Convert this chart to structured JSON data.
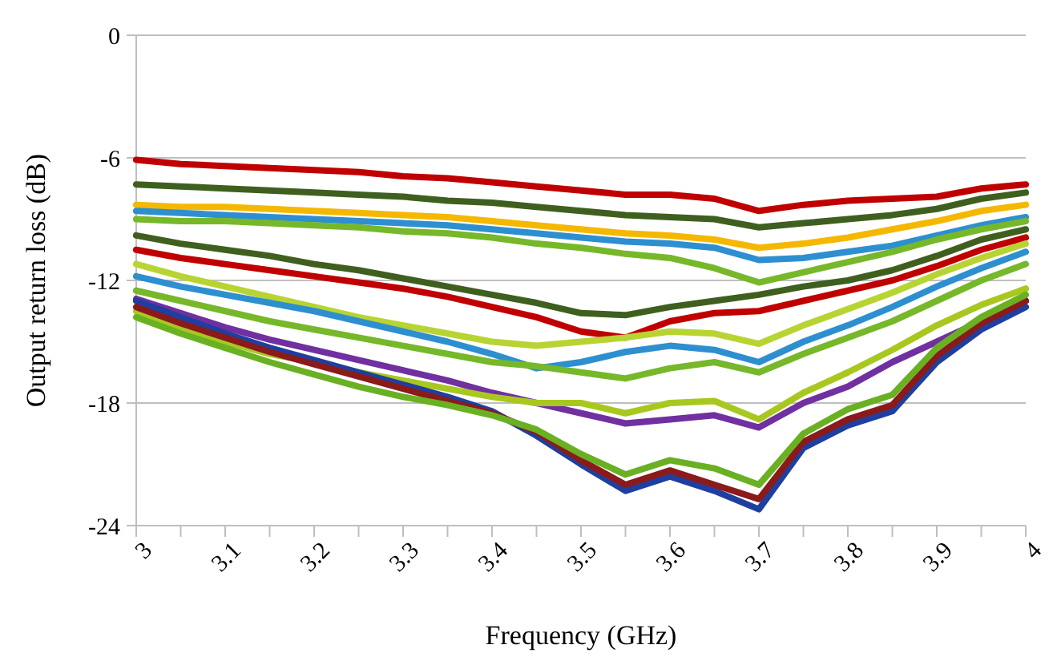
{
  "chart_data": {
    "type": "line",
    "xlabel": "Frequency (GHz)",
    "ylabel": "Output return loss (dB)",
    "x": [
      3,
      3.05,
      3.1,
      3.15,
      3.2,
      3.25,
      3.3,
      3.35,
      3.4,
      3.45,
      3.5,
      3.55,
      3.6,
      3.65,
      3.7,
      3.75,
      3.8,
      3.85,
      3.9,
      3.95,
      4
    ],
    "xlim": [
      3,
      4
    ],
    "xticks": [
      3,
      {
        "value": 3.05,
        "label": null
      },
      3.1,
      {
        "value": 3.15,
        "label": null
      },
      3.2,
      {
        "value": 3.25,
        "label": null
      },
      3.3,
      {
        "value": 3.35,
        "label": null
      },
      3.4,
      {
        "value": 3.45,
        "label": null
      },
      3.5,
      {
        "value": 3.55,
        "label": null
      },
      3.6,
      {
        "value": 3.65,
        "label": null
      },
      3.7,
      {
        "value": 3.75,
        "label": null
      },
      3.8,
      {
        "value": 3.85,
        "label": null
      },
      3.9,
      {
        "value": 3.95,
        "label": null
      },
      4
    ],
    "ylim": [
      -24,
      0
    ],
    "yticks": [
      -24,
      -18,
      -12,
      -6,
      0
    ],
    "grid": "y",
    "marker": "none",
    "line_style": "solid",
    "series": [
      {
        "color": "#c00000",
        "values": [
          -6.1,
          -6.3,
          -6.4,
          -6.5,
          -6.6,
          -6.7,
          -6.9,
          -7.0,
          -7.2,
          -7.4,
          -7.6,
          -7.8,
          -7.8,
          -8.0,
          -8.6,
          -8.3,
          -8.1,
          -8.0,
          -7.9,
          -7.5,
          -7.3
        ]
      },
      {
        "color": "#3f5f1f",
        "values": [
          -7.3,
          -7.4,
          -7.5,
          -7.6,
          -7.7,
          -7.8,
          -7.9,
          -8.1,
          -8.2,
          -8.4,
          -8.6,
          -8.8,
          -8.9,
          -9.0,
          -9.4,
          -9.2,
          -9.0,
          -8.8,
          -8.5,
          -8.0,
          -7.7
        ]
      },
      {
        "color": "#f5b800",
        "values": [
          -8.3,
          -8.4,
          -8.4,
          -8.5,
          -8.6,
          -8.7,
          -8.8,
          -8.9,
          -9.1,
          -9.3,
          -9.5,
          -9.7,
          -9.8,
          -10.0,
          -10.4,
          -10.2,
          -9.9,
          -9.5,
          -9.1,
          -8.6,
          -8.3
        ]
      },
      {
        "color": "#2e8fd0",
        "values": [
          -8.6,
          -8.7,
          -8.8,
          -8.9,
          -9.0,
          -9.1,
          -9.2,
          -9.3,
          -9.5,
          -9.7,
          -9.9,
          -10.1,
          -10.2,
          -10.4,
          -11.0,
          -10.9,
          -10.6,
          -10.3,
          -9.8,
          -9.3,
          -8.9
        ]
      },
      {
        "color": "#76b82a",
        "values": [
          -9.0,
          -9.1,
          -9.1,
          -9.2,
          -9.3,
          -9.4,
          -9.6,
          -9.7,
          -9.9,
          -10.2,
          -10.4,
          -10.7,
          -10.9,
          -11.4,
          -12.1,
          -11.6,
          -11.1,
          -10.6,
          -10.0,
          -9.5,
          -9.1
        ]
      },
      {
        "color": "#3f5f1f",
        "values": [
          -9.8,
          -10.2,
          -10.5,
          -10.8,
          -11.2,
          -11.5,
          -11.9,
          -12.3,
          -12.7,
          -13.1,
          -13.6,
          -13.7,
          -13.3,
          -13.0,
          -12.7,
          -12.3,
          -12.0,
          -11.5,
          -10.8,
          -10.0,
          -9.5
        ]
      },
      {
        "color": "#c00000",
        "values": [
          -10.5,
          -10.9,
          -11.2,
          -11.5,
          -11.8,
          -12.1,
          -12.4,
          -12.8,
          -13.3,
          -13.8,
          -14.5,
          -14.8,
          -14.0,
          -13.6,
          -13.5,
          -13.0,
          -12.5,
          -12.0,
          -11.3,
          -10.5,
          -9.9
        ]
      },
      {
        "color": "#b8d432",
        "values": [
          -11.2,
          -11.8,
          -12.3,
          -12.8,
          -13.3,
          -13.8,
          -14.2,
          -14.6,
          -15.0,
          -15.2,
          -15.0,
          -14.8,
          -14.5,
          -14.6,
          -15.1,
          -14.2,
          -13.4,
          -12.6,
          -11.7,
          -10.9,
          -10.2
        ]
      },
      {
        "color": "#2e8fd0",
        "values": [
          -11.8,
          -12.3,
          -12.7,
          -13.1,
          -13.5,
          -14.0,
          -14.5,
          -15.0,
          -15.6,
          -16.3,
          -16.0,
          -15.5,
          -15.2,
          -15.4,
          -16.0,
          -15.0,
          -14.2,
          -13.3,
          -12.3,
          -11.4,
          -10.6
        ]
      },
      {
        "color": "#76b82a",
        "values": [
          -12.5,
          -13.0,
          -13.5,
          -14.0,
          -14.4,
          -14.8,
          -15.2,
          -15.6,
          -16.0,
          -16.2,
          -16.5,
          -16.8,
          -16.3,
          -16.0,
          -16.5,
          -15.6,
          -14.8,
          -14.0,
          -13.0,
          -12.0,
          -11.2
        ]
      },
      {
        "color": "#7030a0",
        "values": [
          -12.9,
          -13.6,
          -14.3,
          -14.9,
          -15.4,
          -15.9,
          -16.4,
          -16.9,
          -17.5,
          -18.0,
          -18.5,
          -19.0,
          -18.8,
          -18.6,
          -19.2,
          -18.0,
          -17.2,
          -16.0,
          -15.0,
          -14.0,
          -13.0
        ]
      },
      {
        "color": "#a8c820",
        "values": [
          -13.5,
          -14.3,
          -15.0,
          -15.6,
          -16.0,
          -16.5,
          -16.9,
          -17.3,
          -17.7,
          -18.0,
          -18.0,
          -18.5,
          -18.0,
          -17.9,
          -18.8,
          -17.5,
          -16.5,
          -15.4,
          -14.2,
          -13.2,
          -12.4
        ]
      },
      {
        "color": "#1f3f9f",
        "values": [
          -13.0,
          -13.8,
          -14.6,
          -15.3,
          -15.9,
          -16.5,
          -17.1,
          -17.7,
          -18.4,
          -19.6,
          -21.0,
          -22.3,
          -21.6,
          -22.3,
          -23.2,
          -20.2,
          -19.1,
          -18.4,
          -16.0,
          -14.4,
          -13.3
        ]
      },
      {
        "color": "#8b1a1a",
        "values": [
          -13.3,
          -14.1,
          -14.8,
          -15.5,
          -16.1,
          -16.7,
          -17.3,
          -17.9,
          -18.5,
          -19.4,
          -20.8,
          -22.0,
          -21.3,
          -22.0,
          -22.7,
          -19.9,
          -18.8,
          -18.1,
          -15.7,
          -14.1,
          -13.0
        ]
      },
      {
        "color": "#6ab023",
        "values": [
          -13.8,
          -14.6,
          -15.3,
          -16.0,
          -16.6,
          -17.2,
          -17.7,
          -18.1,
          -18.6,
          -19.3,
          -20.5,
          -21.5,
          -20.8,
          -21.2,
          -22.0,
          -19.5,
          -18.3,
          -17.6,
          -15.3,
          -13.8,
          -12.7
        ]
      }
    ]
  }
}
